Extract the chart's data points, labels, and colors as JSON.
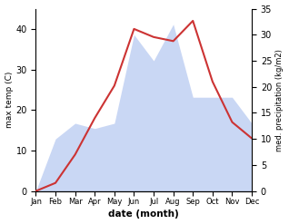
{
  "months": [
    "Jan",
    "Feb",
    "Mar",
    "Apr",
    "May",
    "Jun",
    "Jul",
    "Aug",
    "Sep",
    "Oct",
    "Nov",
    "Dec"
  ],
  "month_positions": [
    1,
    2,
    3,
    4,
    5,
    6,
    7,
    8,
    9,
    10,
    11,
    12
  ],
  "temp": [
    0,
    2,
    9,
    18,
    26,
    40,
    38,
    37,
    42,
    27,
    17,
    13
  ],
  "precip": [
    0,
    10,
    13,
    12,
    13,
    30,
    25,
    32,
    18,
    18,
    18,
    13
  ],
  "temp_color": "#cc3333",
  "precip_color": "#b3c6f0",
  "xlabel": "date (month)",
  "ylabel_left": "max temp (C)",
  "ylabel_right": "med. precipitation (kg/m2)",
  "ylim_left": [
    0,
    45
  ],
  "ylim_right": [
    0,
    35
  ],
  "yticks_left": [
    0,
    10,
    20,
    30,
    40
  ],
  "yticks_right": [
    0,
    5,
    10,
    15,
    20,
    25,
    30,
    35
  ],
  "bg_color": "#ffffff",
  "fig_width": 3.18,
  "fig_height": 2.47,
  "dpi": 100
}
